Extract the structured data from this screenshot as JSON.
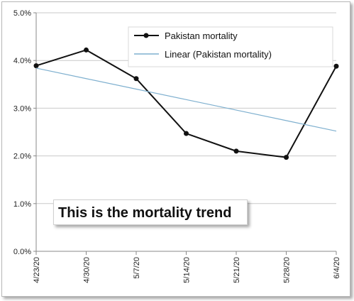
{
  "chart_data": {
    "type": "line",
    "title": "",
    "xlabel": "",
    "ylabel": "",
    "categories": [
      "4/23/20",
      "4/30/20",
      "5/7/20",
      "5/14/20",
      "5/21/20",
      "5/28/20",
      "6/4/20"
    ],
    "ylim": [
      0.0,
      5.0
    ],
    "y_ticks": [
      "0.0%",
      "1.0%",
      "2.0%",
      "3.0%",
      "4.0%",
      "5.0%"
    ],
    "y_tick_values": [
      0.0,
      1.0,
      2.0,
      3.0,
      4.0,
      5.0
    ],
    "grid": "horizontal",
    "legend_position": "top-right",
    "series": [
      {
        "name": "Pakistan mortality",
        "values": [
          3.89,
          4.22,
          3.62,
          2.47,
          2.1,
          1.97,
          3.88
        ],
        "color": "#111111",
        "markers": true
      },
      {
        "name": "Linear (Pakistan mortality)",
        "values": [
          3.84,
          3.62,
          3.4,
          3.18,
          2.96,
          2.74,
          2.52
        ],
        "color": "#7fb0cf",
        "markers": false,
        "trendline": true
      }
    ],
    "annotations": [
      "This is the mortality trend"
    ]
  }
}
